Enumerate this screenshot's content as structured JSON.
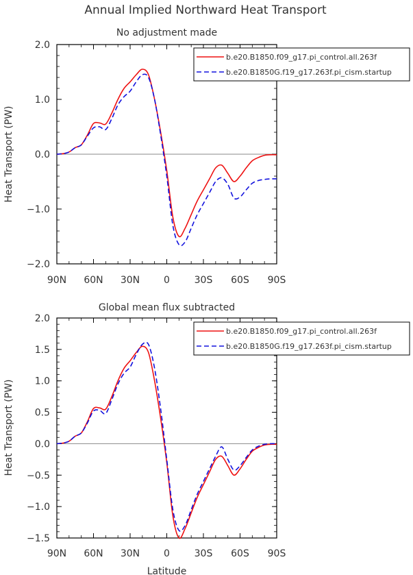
{
  "figure": {
    "title": "Annual Implied Northward Heat Transport"
  },
  "chart_data": [
    {
      "type": "line",
      "title": "No adjustment made",
      "xlabel": "",
      "ylabel": "Heat Transport (PW)",
      "xlim": [
        90,
        -90
      ],
      "ylim": [
        -2.0,
        2.0
      ],
      "xticks": [
        90,
        60,
        30,
        0,
        -30,
        -60,
        -90
      ],
      "xtick_labels": [
        "90N",
        "60N",
        "30N",
        "0",
        "30S",
        "60S",
        "90S"
      ],
      "yticks": [
        -2.0,
        -1.0,
        0.0,
        1.0,
        2.0
      ],
      "ytick_labels": [
        "−2.0",
        "−1.0",
        "0.0",
        "1.0",
        "2.0"
      ],
      "zero_line": true,
      "legend_position": "top-right",
      "series": [
        {
          "name": "b.e20.B1850.f09_g17.pi_control.all.263f",
          "color": "#ee1111",
          "dash": "solid",
          "x": [
            90,
            85,
            80,
            75,
            70,
            65,
            60,
            55,
            50,
            45,
            40,
            35,
            30,
            25,
            20,
            15,
            10,
            5,
            0,
            -5,
            -10,
            -15,
            -20,
            -25,
            -30,
            -35,
            -40,
            -45,
            -50,
            -55,
            -60,
            -65,
            -70,
            -75,
            -80,
            -85,
            -90
          ],
          "y": [
            0.0,
            0.01,
            0.04,
            0.12,
            0.17,
            0.35,
            0.56,
            0.57,
            0.55,
            0.75,
            1.0,
            1.2,
            1.32,
            1.45,
            1.55,
            1.45,
            1.0,
            0.4,
            -0.3,
            -1.15,
            -1.5,
            -1.35,
            -1.1,
            -0.85,
            -0.65,
            -0.45,
            -0.25,
            -0.2,
            -0.35,
            -0.5,
            -0.4,
            -0.25,
            -0.12,
            -0.06,
            -0.02,
            -0.01,
            -0.01
          ]
        },
        {
          "name": "b.e20.B1850G.f19_g17.263f.pi_cism.startup",
          "color": "#1111dd",
          "dash": "dashed",
          "x": [
            90,
            85,
            80,
            75,
            70,
            65,
            60,
            55,
            50,
            45,
            40,
            35,
            30,
            25,
            20,
            15,
            10,
            5,
            0,
            -5,
            -10,
            -15,
            -20,
            -25,
            -30,
            -35,
            -40,
            -45,
            -50,
            -55,
            -60,
            -65,
            -70,
            -75,
            -80,
            -85,
            -90
          ],
          "y": [
            0.0,
            0.01,
            0.04,
            0.12,
            0.17,
            0.33,
            0.48,
            0.5,
            0.45,
            0.65,
            0.9,
            1.05,
            1.15,
            1.32,
            1.45,
            1.4,
            1.0,
            0.35,
            -0.4,
            -1.3,
            -1.65,
            -1.6,
            -1.35,
            -1.1,
            -0.9,
            -0.7,
            -0.5,
            -0.43,
            -0.55,
            -0.8,
            -0.78,
            -0.65,
            -0.53,
            -0.48,
            -0.46,
            -0.45,
            -0.45
          ]
        }
      ]
    },
    {
      "type": "line",
      "title": "Global mean flux subtracted",
      "xlabel": "Latitude",
      "ylabel": "Heat Transport (PW)",
      "xlim": [
        90,
        -90
      ],
      "ylim": [
        -1.5,
        2.0
      ],
      "xticks": [
        90,
        60,
        30,
        0,
        -30,
        -60,
        -90
      ],
      "xtick_labels": [
        "90N",
        "60N",
        "30N",
        "0",
        "30S",
        "60S",
        "90S"
      ],
      "yticks": [
        -1.5,
        -1.0,
        -0.5,
        0.0,
        0.5,
        1.0,
        1.5,
        2.0
      ],
      "ytick_labels": [
        "−1.5",
        "−1.0",
        "−0.5",
        "0.0",
        "0.5",
        "1.0",
        "1.5",
        "2.0"
      ],
      "zero_line": true,
      "legend_position": "top-right",
      "series": [
        {
          "name": "b.e20.B1850.f09_g17.pi_control.all.263f",
          "color": "#ee1111",
          "dash": "solid",
          "x": [
            90,
            85,
            80,
            75,
            70,
            65,
            60,
            55,
            50,
            45,
            40,
            35,
            30,
            25,
            20,
            15,
            10,
            5,
            0,
            -5,
            -10,
            -15,
            -20,
            -25,
            -30,
            -35,
            -40,
            -45,
            -50,
            -55,
            -60,
            -65,
            -70,
            -75,
            -80,
            -85,
            -90
          ],
          "y": [
            0.0,
            0.01,
            0.04,
            0.12,
            0.17,
            0.35,
            0.56,
            0.57,
            0.55,
            0.75,
            1.0,
            1.2,
            1.32,
            1.45,
            1.55,
            1.45,
            1.0,
            0.4,
            -0.3,
            -1.15,
            -1.5,
            -1.35,
            -1.1,
            -0.85,
            -0.65,
            -0.45,
            -0.25,
            -0.2,
            -0.35,
            -0.5,
            -0.4,
            -0.25,
            -0.12,
            -0.06,
            -0.02,
            -0.01,
            -0.01
          ]
        },
        {
          "name": "b.e20.B1850G.f19_g17.263f.pi_cism.startup",
          "color": "#1111dd",
          "dash": "dashed",
          "x": [
            90,
            85,
            80,
            75,
            70,
            65,
            60,
            55,
            50,
            45,
            40,
            35,
            30,
            25,
            20,
            15,
            10,
            5,
            0,
            -5,
            -10,
            -15,
            -20,
            -25,
            -30,
            -35,
            -40,
            -45,
            -50,
            -55,
            -60,
            -65,
            -70,
            -75,
            -80,
            -85,
            -90
          ],
          "y": [
            0.0,
            0.01,
            0.04,
            0.12,
            0.17,
            0.33,
            0.52,
            0.53,
            0.48,
            0.7,
            0.95,
            1.12,
            1.22,
            1.42,
            1.58,
            1.58,
            1.2,
            0.55,
            -0.25,
            -1.05,
            -1.38,
            -1.3,
            -1.05,
            -0.8,
            -0.6,
            -0.4,
            -0.2,
            -0.05,
            -0.25,
            -0.42,
            -0.35,
            -0.22,
            -0.1,
            -0.04,
            -0.01,
            0.0,
            0.0
          ]
        }
      ]
    }
  ]
}
